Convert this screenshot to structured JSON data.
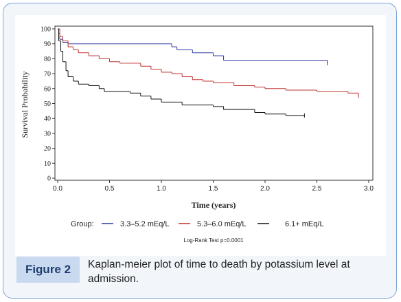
{
  "figure_label": "Figure 2",
  "caption": "Kaplan-meier plot of time to death by potassium level at admission.",
  "chart_data": {
    "type": "step",
    "ylabel": "Survival Probability",
    "xlabel": "Time (years)",
    "legend_title": "Group:",
    "annotation": "Log-Rank Test p=0.0001",
    "xlim": [
      0,
      3
    ],
    "ylim": [
      0,
      100
    ],
    "xticks": [
      {
        "value": 0,
        "label": "0.0"
      },
      0.5,
      {
        "value": 1,
        "label": "1.0"
      },
      1.5,
      {
        "value": 2,
        "label": "2.0"
      },
      2.5,
      {
        "value": 3,
        "label": "3.0"
      }
    ],
    "yticks": [
      0,
      10,
      20,
      30,
      40,
      50,
      60,
      70,
      80,
      90,
      100
    ],
    "series": [
      {
        "name": "3.3–5.2 mEq/L",
        "color": "#2b3a9e",
        "x": [
          0,
          0.01,
          0.02,
          0.05,
          0.1,
          1.1,
          1.15,
          1.3,
          1.5,
          1.6,
          2.6
        ],
        "values": [
          100,
          97,
          93,
          91,
          90,
          88,
          86,
          84,
          82,
          79,
          77
        ]
      },
      {
        "name": "5.3–6.0 mEq/L",
        "color": "#c0302c",
        "x": [
          0,
          0.02,
          0.05,
          0.1,
          0.15,
          0.2,
          0.3,
          0.4,
          0.5,
          0.6,
          0.8,
          0.9,
          1.0,
          1.1,
          1.2,
          1.3,
          1.4,
          1.5,
          1.7,
          1.9,
          2.0,
          2.2,
          2.5,
          2.8,
          2.9
        ],
        "values": [
          100,
          95,
          92,
          88,
          86,
          84,
          82,
          80,
          78,
          77,
          75,
          73,
          71,
          70,
          68,
          66,
          65,
          64,
          62,
          61,
          60,
          59,
          58,
          57,
          55
        ]
      },
      {
        "name": "6.1+ mEq/L",
        "color": "#111111",
        "x": [
          0,
          0.01,
          0.03,
          0.05,
          0.08,
          0.1,
          0.15,
          0.2,
          0.3,
          0.4,
          0.45,
          0.7,
          0.8,
          0.9,
          1.0,
          1.2,
          1.5,
          1.6,
          1.9,
          2.0,
          2.2,
          2.38
        ],
        "values": [
          100,
          92,
          85,
          78,
          72,
          68,
          65,
          63,
          62,
          60,
          58,
          57,
          55,
          53,
          51,
          49,
          48,
          46,
          44,
          43,
          42,
          42
        ]
      }
    ]
  }
}
